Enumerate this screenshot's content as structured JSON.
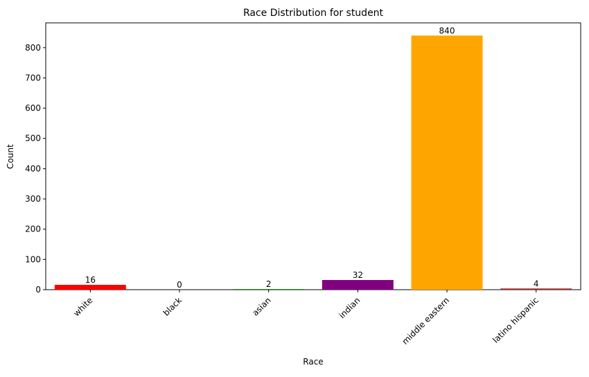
{
  "chart_data": {
    "type": "bar",
    "title": "Race Distribution for student",
    "xlabel": "Race",
    "ylabel": "Count",
    "categories": [
      "white",
      "black",
      "asian",
      "indian",
      "middle eastern",
      "latino hispanic"
    ],
    "values": [
      16,
      0,
      2,
      32,
      840,
      4
    ],
    "value_labels": [
      "16",
      "0",
      "2",
      "32",
      "840",
      "4"
    ],
    "colors": [
      "#ff0000",
      "#000000",
      "#008000",
      "#800080",
      "#ffa500",
      "#a52a2a"
    ],
    "ylim": [
      0,
      882
    ],
    "yticks": [
      0,
      100,
      200,
      300,
      400,
      500,
      600,
      700,
      800
    ],
    "ytick_labels": [
      "0",
      "100",
      "200",
      "300",
      "400",
      "500",
      "600",
      "700",
      "800"
    ],
    "grid": false,
    "legend": "none"
  }
}
